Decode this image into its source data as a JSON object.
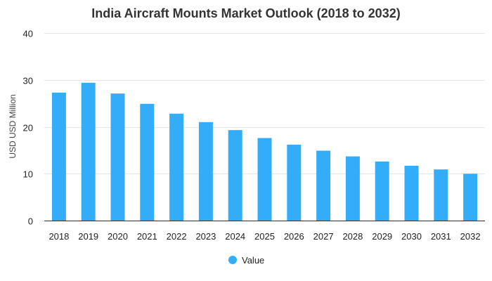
{
  "chart_data": {
    "type": "bar",
    "title": "India Aircraft Mounts Market Outlook (2018 to 2032)",
    "xlabel": "",
    "ylabel": "USD USD Million",
    "ylim": [
      0,
      40
    ],
    "yticks": [
      0,
      10,
      20,
      30,
      40
    ],
    "grid": true,
    "legend_position": "bottom-center",
    "categories": [
      "2018",
      "2019",
      "2020",
      "2021",
      "2022",
      "2023",
      "2024",
      "2025",
      "2026",
      "2027",
      "2028",
      "2029",
      "2030",
      "2031",
      "2032"
    ],
    "series": [
      {
        "name": "Value",
        "color": "#33adf7",
        "values": [
          27.3,
          29.4,
          27.1,
          24.9,
          22.8,
          21.0,
          19.3,
          17.6,
          16.2,
          14.9,
          13.7,
          12.6,
          11.7,
          10.9,
          10.0
        ]
      }
    ]
  }
}
